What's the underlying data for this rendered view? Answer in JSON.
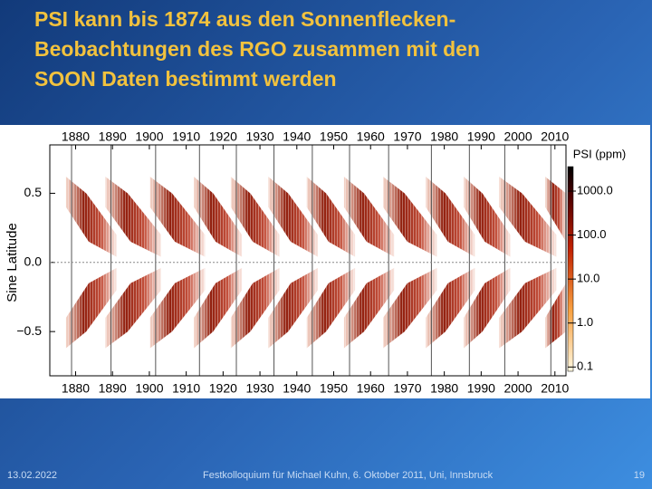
{
  "slide": {
    "title": [
      "PSI kann bis 1874 aus den Sonnenflecken-",
      "Beobachtungen des RGO zusammen mit den",
      "SOON Daten bestimmt werden"
    ],
    "footer": {
      "date": "13.02.2022",
      "text": "Festkolloquium für Michael Kuhn, 6. Oktober 2011, Uni, Innsbruck",
      "page": "19"
    }
  },
  "chart_data": {
    "type": "heatmap",
    "ylabel": "Sine Latitude",
    "color": "#a01800",
    "xlim": [
      1873,
      2013
    ],
    "xticks": [
      1880,
      1890,
      1900,
      1910,
      1920,
      1930,
      1940,
      1950,
      1960,
      1970,
      1980,
      1990,
      2000,
      2010
    ],
    "ylim": [
      -0.82,
      0.85
    ],
    "yticks": [
      0.5,
      {
        "value": 0,
        "label": "0.0"
      },
      {
        "value": -0.5,
        "label": "−0.5"
      }
    ],
    "cycle_minima": [
      1878.9,
      1889.6,
      1901.7,
      1913.6,
      1923.6,
      1933.8,
      1944.2,
      1954.3,
      1964.9,
      1976.5,
      1986.8,
      1996.4,
      2008.9
    ],
    "colorbar": {
      "title": "PSI (ppm)",
      "log": true,
      "clim": [
        0.08,
        3600
      ],
      "ticks": [
        {
          "value": 1000,
          "label": "1000.0"
        },
        {
          "value": 100,
          "label": "100.0"
        },
        {
          "value": 10,
          "label": "10.0"
        },
        {
          "value": 1,
          "label": "1.0"
        },
        0.1
      ]
    }
  }
}
